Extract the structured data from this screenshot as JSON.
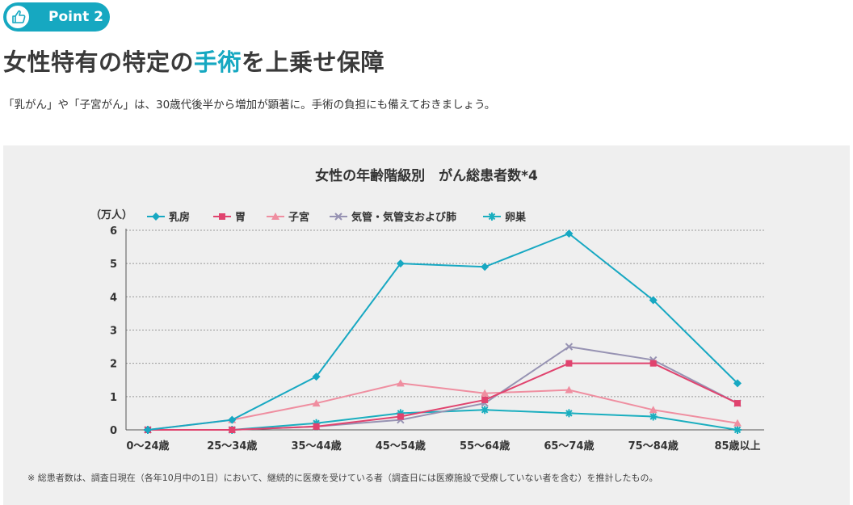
{
  "badge": {
    "label": "Point 2",
    "icon": "thumbs-up-icon",
    "color": "#16a8c1"
  },
  "heading": {
    "before": "女性特有の特定の",
    "highlight": "手術",
    "after": "を上乗せ保障"
  },
  "description": "「乳がん」や「子宮がん」は、30歳代後半から増加が顕著に。手術の負担にも備えておきましょう。",
  "footnote": "※ 総患者数は、調査日現在（各年10月中の1日）において、継続的に医療を受けている者（調査日には医療施設で受療していない者を含む）を推計したもの。",
  "chart_data": {
    "type": "line",
    "title": "女性の年齢階級別　がん総患者数*4",
    "ylabel": "（万人）",
    "xlabel": "",
    "categories": [
      "0〜24歳",
      "25〜34歳",
      "35〜44歳",
      "45〜54歳",
      "55〜64歳",
      "65〜74歳",
      "75〜84歳",
      "85歳以上"
    ],
    "ylim": [
      0,
      6
    ],
    "yticks": [
      "0",
      "1",
      "2",
      "3",
      "4",
      "5",
      "6"
    ],
    "grid": true,
    "legend_position": "top",
    "series": [
      {
        "name": "乳房",
        "color": "#17a8c2",
        "marker": "diamond",
        "values": [
          0,
          0.3,
          1.6,
          5.0,
          4.9,
          5.9,
          3.9,
          1.4
        ]
      },
      {
        "name": "胃",
        "color": "#e0436e",
        "marker": "square",
        "values": [
          0,
          0,
          0.1,
          0.4,
          0.9,
          2.0,
          2.0,
          0.8
        ]
      },
      {
        "name": "子宮",
        "color": "#ef8ea0",
        "marker": "triangle",
        "values": [
          0,
          0.3,
          0.8,
          1.4,
          1.1,
          1.2,
          0.6,
          0.2
        ]
      },
      {
        "name": "気管・気管支および肺",
        "color": "#9793b3",
        "marker": "cross",
        "values": [
          0,
          0,
          0.1,
          0.3,
          0.8,
          2.5,
          2.1,
          0.8
        ]
      },
      {
        "name": "卵巣",
        "color": "#1aaebf",
        "marker": "asterisk",
        "values": [
          0,
          0,
          0.2,
          0.5,
          0.6,
          0.5,
          0.4,
          0
        ]
      }
    ]
  }
}
